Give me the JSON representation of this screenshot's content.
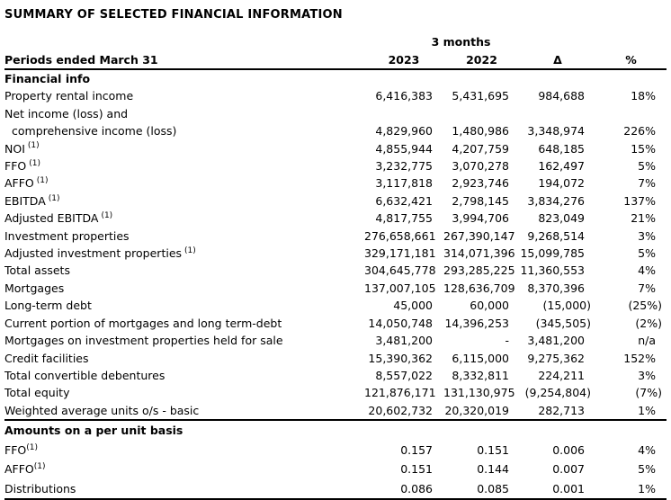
{
  "title": "SUMMARY OF SELECTED FINANCIAL INFORMATION",
  "table": {
    "period_group_label": "3 months",
    "columns": [
      "Periods ended March 31",
      "2023",
      "2022",
      "Δ",
      "%"
    ],
    "sections": [
      {
        "header": "Financial info",
        "rows": [
          {
            "label": "Property rental income",
            "values": [
              "6,416,383",
              "5,431,695",
              "984,688",
              "18%"
            ]
          },
          {
            "label": "Net income (loss) and",
            "label2": "comprehensive income (loss)",
            "values": [
              "4,829,960",
              "1,480,986",
              "3,348,974",
              "226%"
            ]
          },
          {
            "label": "NOI",
            "sup": "(1)",
            "sup_gap": true,
            "values": [
              "4,855,944",
              "4,207,759",
              "648,185",
              "15%"
            ]
          },
          {
            "label": "FFO",
            "sup": "(1)",
            "sup_gap": true,
            "values": [
              "3,232,775",
              "3,070,278",
              "162,497",
              "5%"
            ]
          },
          {
            "label": "AFFO",
            "sup": "(1)",
            "sup_gap": true,
            "values": [
              "3,117,818",
              "2,923,746",
              "194,072",
              "7%"
            ]
          },
          {
            "label": "EBITDA",
            "sup": "(1)",
            "sup_gap": true,
            "values": [
              "6,632,421",
              "2,798,145",
              "3,834,276",
              "137%"
            ]
          },
          {
            "label": "Adjusted EBITDA",
            "sup": "(1)",
            "sup_gap": true,
            "values": [
              "4,817,755",
              "3,994,706",
              "823,049",
              "21%"
            ]
          },
          {
            "label": "Investment properties",
            "values": [
              "276,658,661",
              "267,390,147",
              "9,268,514",
              "3%"
            ]
          },
          {
            "label": "Adjusted investment properties",
            "sup": "(1)",
            "sup_gap": true,
            "values": [
              "329,171,181",
              "314,071,396",
              "15,099,785",
              "5%"
            ]
          },
          {
            "label": "Total assets",
            "values": [
              "304,645,778",
              "293,285,225",
              "11,360,553",
              "4%"
            ]
          },
          {
            "label": "Mortgages",
            "values": [
              "137,007,105",
              "128,636,709",
              "8,370,396",
              "7%"
            ]
          },
          {
            "label": "Long-term debt",
            "values": [
              "45,000",
              "60,000",
              "(15,000)",
              "(25%)"
            ]
          },
          {
            "label": "Current portion of mortgages and long term-debt",
            "values": [
              "14,050,748",
              "14,396,253",
              "(345,505)",
              "(2%)"
            ]
          },
          {
            "label": "Mortgages on investment properties held for sale",
            "values": [
              "3,481,200",
              "-",
              "3,481,200",
              "n/a"
            ]
          },
          {
            "label": "Credit facilities",
            "values": [
              "15,390,362",
              "6,115,000",
              "9,275,362",
              "152%"
            ]
          },
          {
            "label": "Total convertible debentures",
            "values": [
              "8,557,022",
              "8,332,811",
              "224,211",
              "3%"
            ]
          },
          {
            "label": "Total equity",
            "values": [
              "121,876,171",
              "131,130,975",
              "(9,254,804)",
              "(7%)"
            ]
          },
          {
            "label": "Weighted average units o/s - basic",
            "values": [
              "20,602,732",
              "20,320,019",
              "282,713",
              "1%"
            ]
          }
        ]
      },
      {
        "header": "Amounts on a per unit basis",
        "rows": [
          {
            "label": "FFO",
            "sup": "(1)",
            "sup_gap": false,
            "values": [
              "0.157",
              "0.151",
              "0.006",
              "4%"
            ]
          },
          {
            "label": "AFFO",
            "sup": "(1)",
            "sup_gap": false,
            "values": [
              "0.151",
              "0.144",
              "0.007",
              "5%"
            ]
          },
          {
            "label": "Distributions",
            "values": [
              "0.086",
              "0.085",
              "0.001",
              "1%"
            ]
          }
        ]
      }
    ]
  }
}
